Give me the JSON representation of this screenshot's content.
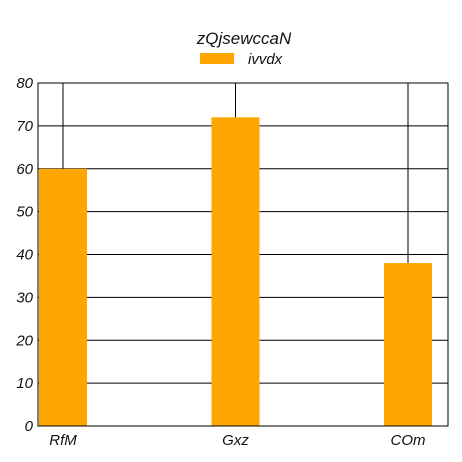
{
  "chart_data": {
    "type": "bar",
    "title": "zQjsewccaN",
    "categories": [
      "RfM",
      "Gxz",
      "COm"
    ],
    "series": [
      {
        "name": "ivvdx",
        "values": [
          60,
          72,
          38
        ],
        "color": "#FFA500"
      }
    ],
    "ylim": [
      0,
      80
    ],
    "yticks": [
      0,
      10,
      20,
      30,
      40,
      50,
      60,
      70,
      80
    ],
    "xlabel": "",
    "ylabel": "",
    "grid": true,
    "legend_position": "top-center"
  }
}
